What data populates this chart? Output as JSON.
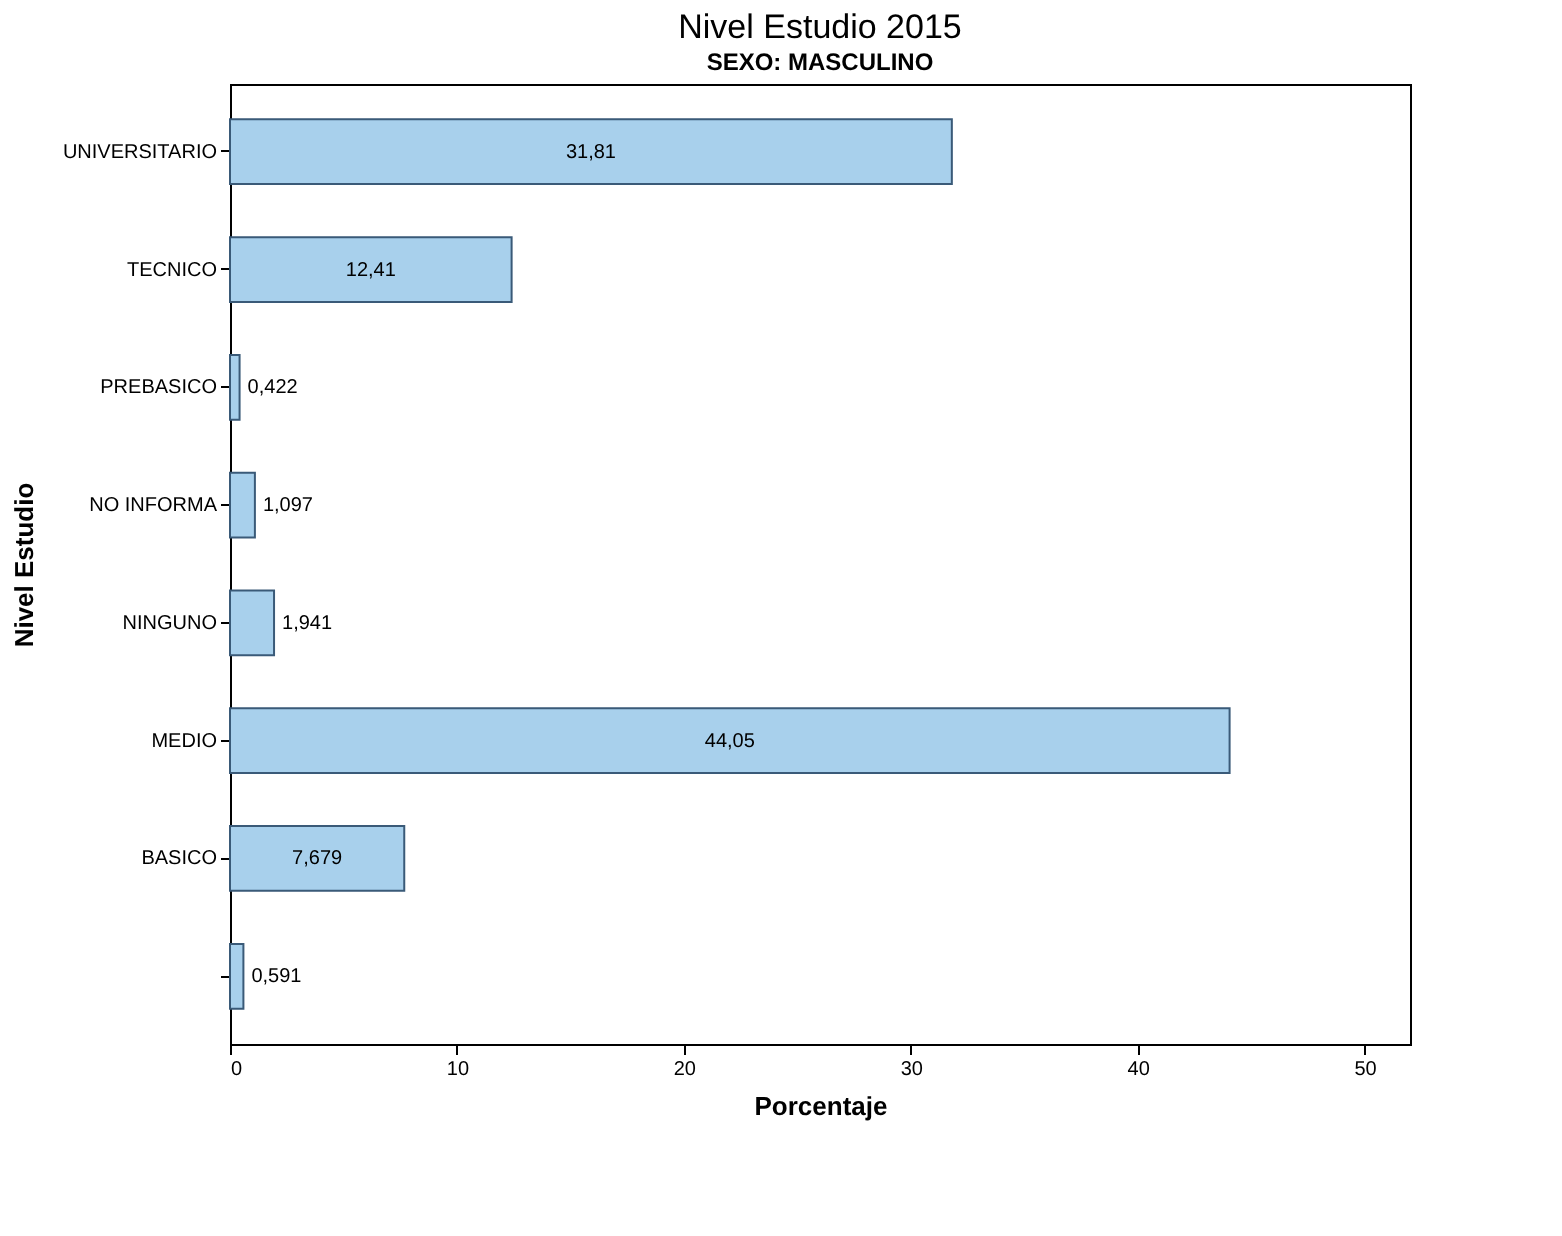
{
  "chart_data": {
    "type": "bar",
    "orientation": "horizontal",
    "title": "Nivel Estudio 2015",
    "subtitle": "SEXO: MASCULINO",
    "xlabel": "Porcentaje",
    "ylabel": "Nivel Estudio",
    "categories": [
      "UNIVERSITARIO",
      "TECNICO",
      "PREBASICO",
      "NO INFORMA",
      "NINGUNO",
      "MEDIO",
      "BASICO",
      null
    ],
    "values": [
      31.81,
      12.41,
      0.422,
      1.097,
      1.941,
      44.05,
      7.679,
      0.591
    ],
    "value_labels": [
      "31,81",
      "12,41",
      "0,422",
      "1,097",
      "1,941",
      "44,05",
      "7,679",
      "0,591"
    ],
    "color": "#a8d0ec",
    "xlim": [
      0,
      52
    ],
    "xticks": [
      0,
      10,
      20,
      30,
      40,
      50
    ],
    "grid": false
  }
}
